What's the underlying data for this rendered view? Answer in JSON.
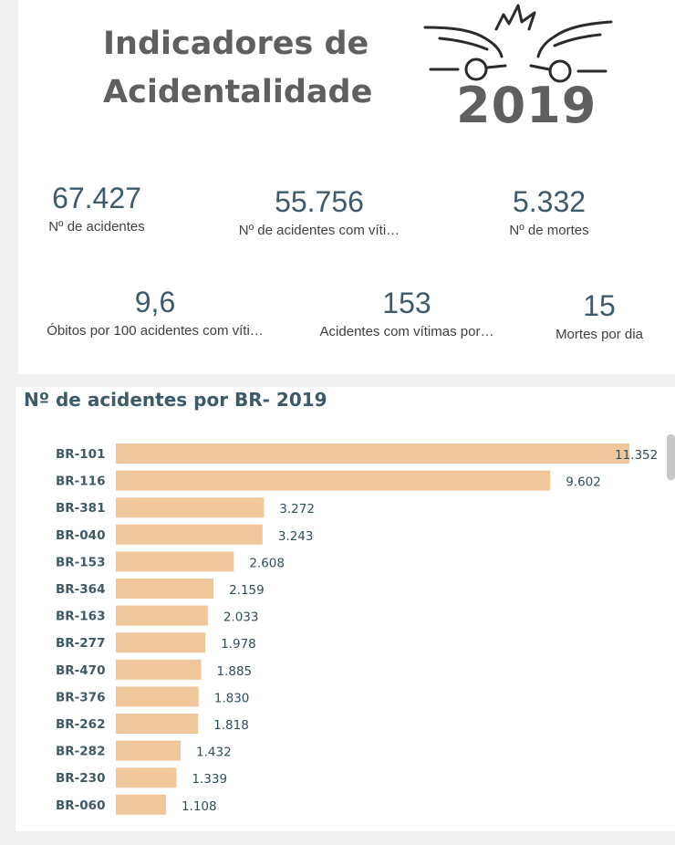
{
  "header": {
    "title": "Indicadores de\nAcidentalidade",
    "logo_year": "2019",
    "logo_icon": "car-crash-icon"
  },
  "kpis": [
    {
      "value": "67.427",
      "label": "Nº de acidentes"
    },
    {
      "value": "55.756",
      "label": "Nº de acidentes com víti…"
    },
    {
      "value": "5.332",
      "label": "Nº de mortes"
    },
    {
      "value": "9,6",
      "label": "Óbitos por 100 acidentes com víti…"
    },
    {
      "value": "153",
      "label": "Acidentes com vítimas por…"
    },
    {
      "value": "15",
      "label": "Mortes por dia"
    }
  ],
  "chart_data": {
    "type": "bar",
    "orientation": "horizontal",
    "title": "Nº de acidentes por BR- 2019",
    "categories": [
      "BR-101",
      "BR-116",
      "BR-381",
      "BR-040",
      "BR-153",
      "BR-364",
      "BR-163",
      "BR-277",
      "BR-470",
      "BR-376",
      "BR-262",
      "BR-282",
      "BR-230",
      "BR-060"
    ],
    "values": [
      11352,
      9602,
      3272,
      3243,
      2608,
      2159,
      2033,
      1978,
      1885,
      1830,
      1818,
      1432,
      1339,
      1108
    ],
    "value_labels": [
      "11.352",
      "9.602",
      "3.272",
      "3.243",
      "2.608",
      "2.159",
      "2.033",
      "1.978",
      "1.885",
      "1.830",
      "1.818",
      "1.432",
      "1.339",
      "1.108"
    ],
    "bar_color": "#f0c79b",
    "label_color": "#2f4f5a"
  }
}
